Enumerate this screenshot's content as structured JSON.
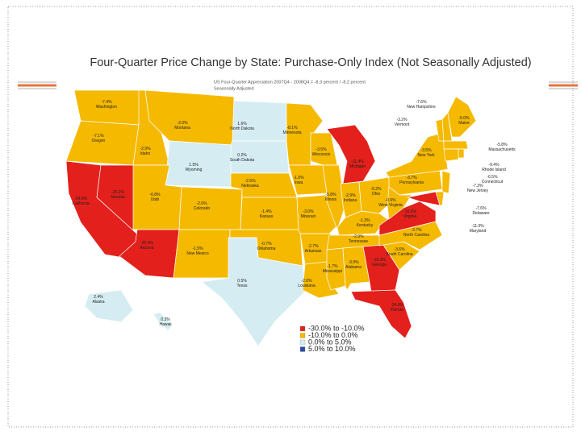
{
  "map": {
    "title": "Four-Quarter Price Change by State: Purchase-Only Index (Not Seasonally Adjusted)",
    "subtitle": [
      "US Four-Quarter Appreciation 2007Q4 - 2008Q4 = -8.3 percent / -8.2 percent",
      "Seasonally Adjusted"
    ],
    "legend": [
      {
        "label": "-30.0% to -10.0%",
        "color": "#e3201b"
      },
      {
        "label": "-10.0% to 0.0%",
        "color": "#f5b900"
      },
      {
        "label": "0.0% to 5.0%",
        "color": "#d5edf2"
      },
      {
        "label": "5.0% to 10.0%",
        "color": "#2a4aa8"
      }
    ],
    "states": [
      {
        "name": "Washington",
        "value": -7.4,
        "value_label": "-7.4%",
        "color": "#f5b900"
      },
      {
        "name": "Oregon",
        "value": -7.1,
        "value_label": "-7.1%",
        "color": "#f5b900"
      },
      {
        "name": "California",
        "value": -24.5,
        "value_label": "-24.5%",
        "color": "#e3201b"
      },
      {
        "name": "Nevada",
        "value": -25.2,
        "value_label": "-25.2%",
        "color": "#e3201b"
      },
      {
        "name": "Idaho",
        "value": -2.9,
        "value_label": "-2.9%",
        "color": "#f5b900"
      },
      {
        "name": "Montana",
        "value": -2.0,
        "value_label": "-2.0%",
        "color": "#f5b900"
      },
      {
        "name": "Wyoming",
        "value": 1.5,
        "value_label": "1.5%",
        "color": "#d5edf2"
      },
      {
        "name": "Utah",
        "value": -6.8,
        "value_label": "-6.8%",
        "color": "#f5b900"
      },
      {
        "name": "Arizona",
        "value": -20.9,
        "value_label": "-20.9%",
        "color": "#e3201b"
      },
      {
        "name": "Colorado",
        "value": -2.6,
        "value_label": "-2.6%",
        "color": "#f5b900"
      },
      {
        "name": "New Mexico",
        "value": -1.5,
        "value_label": "-1.5%",
        "color": "#f5b900"
      },
      {
        "name": "North Dakota",
        "value": 1.6,
        "value_label": "1.6%",
        "color": "#d5edf2"
      },
      {
        "name": "South Dakota",
        "value": 0.2,
        "value_label": "0.2%",
        "color": "#d5edf2"
      },
      {
        "name": "Nebraska",
        "value": -2.5,
        "value_label": "-2.5%",
        "color": "#f5b900"
      },
      {
        "name": "Kansas",
        "value": -1.4,
        "value_label": "-1.4%",
        "color": "#f5b900"
      },
      {
        "name": "Oklahoma",
        "value": -0.7,
        "value_label": "-0.7%",
        "color": "#f5b900"
      },
      {
        "name": "Texas",
        "value": 0.5,
        "value_label": "0.5%",
        "color": "#d5edf2"
      },
      {
        "name": "Minnesota",
        "value": -8.1,
        "value_label": "-8.1%",
        "color": "#f5b900"
      },
      {
        "name": "Iowa",
        "value": -1.0,
        "value_label": "-1.0%",
        "color": "#f5b900"
      },
      {
        "name": "Missouri",
        "value": -3.0,
        "value_label": "-3.0%",
        "color": "#f5b900"
      },
      {
        "name": "Arkansas",
        "value": -2.7,
        "value_label": "-2.7%",
        "color": "#f5b900"
      },
      {
        "name": "Louisiana",
        "value": -2.0,
        "value_label": "-2.0%",
        "color": "#f5b900"
      },
      {
        "name": "Wisconsin",
        "value": -3.5,
        "value_label": "-3.5%",
        "color": "#f5b900"
      },
      {
        "name": "Illinois",
        "value": -5.8,
        "value_label": "-5.8%",
        "color": "#f5b900"
      },
      {
        "name": "Michigan",
        "value": -11.4,
        "value_label": "-11.4%",
        "color": "#e3201b"
      },
      {
        "name": "Indiana",
        "value": -2.9,
        "value_label": "-2.9%",
        "color": "#f5b900"
      },
      {
        "name": "Ohio",
        "value": -6.2,
        "value_label": "-6.2%",
        "color": "#f5b900"
      },
      {
        "name": "Kentucky",
        "value": -1.3,
        "value_label": "-1.3%",
        "color": "#f5b900"
      },
      {
        "name": "Tennessee",
        "value": -2.9,
        "value_label": "-2.9%",
        "color": "#f5b900"
      },
      {
        "name": "Mississippi",
        "value": -1.7,
        "value_label": "-1.7%",
        "color": "#f5b900"
      },
      {
        "name": "Alabama",
        "value": -3.9,
        "value_label": "-3.9%",
        "color": "#f5b900"
      },
      {
        "name": "Georgia",
        "value": -10.3,
        "value_label": "-10.3%",
        "color": "#e3201b"
      },
      {
        "name": "Florida",
        "value": -24.0,
        "value_label": "-24.0%",
        "color": "#e3201b"
      },
      {
        "name": "South Carolina",
        "value": -3.6,
        "value_label": "-3.6%",
        "color": "#f5b900"
      },
      {
        "name": "North Carolina",
        "value": -3.7,
        "value_label": "-3.7%",
        "color": "#f5b900"
      },
      {
        "name": "Virginia",
        "value": -10.6,
        "value_label": "-10.6%",
        "color": "#e3201b"
      },
      {
        "name": "West Virginia",
        "value": -0.9,
        "value_label": "-0.9%",
        "color": "#f5b900"
      },
      {
        "name": "Pennsylvania",
        "value": -3.7,
        "value_label": "-3.7%",
        "color": "#f5b900"
      },
      {
        "name": "New York",
        "value": -3.5,
        "value_label": "-3.5%",
        "color": "#f5b900"
      },
      {
        "name": "Vermont",
        "value": -3.2,
        "value_label": "-3.2%",
        "color": "#f5b900"
      },
      {
        "name": "New Hampshire",
        "value": -7.6,
        "value_label": "-7.6%",
        "color": "#f5b900"
      },
      {
        "name": "Maine",
        "value": -5.0,
        "value_label": "-5.0%",
        "color": "#f5b900"
      },
      {
        "name": "Massachusetts",
        "value": -5.8,
        "value_label": "-5.8%",
        "color": "#f5b900"
      },
      {
        "name": "Rhode Island",
        "value": -9.4,
        "value_label": "-9.4%",
        "color": "#f5b900"
      },
      {
        "name": "Connecticut",
        "value": -6.5,
        "value_label": "-6.5%",
        "color": "#f5b900"
      },
      {
        "name": "New Jersey",
        "value": -7.3,
        "value_label": "-7.3%",
        "color": "#f5b900"
      },
      {
        "name": "Delaware",
        "value": -7.6,
        "value_label": "-7.6%",
        "color": "#f5b900"
      },
      {
        "name": "Maryland",
        "value": -11.0,
        "value_label": "-11.0%",
        "color": "#e3201b"
      },
      {
        "name": "Alaska",
        "value": 2.4,
        "value_label": "2.4%",
        "color": "#d5edf2"
      },
      {
        "name": "Hawaii",
        "value": 0.3,
        "value_label": "0.3%",
        "color": "#d5edf2"
      }
    ]
  }
}
